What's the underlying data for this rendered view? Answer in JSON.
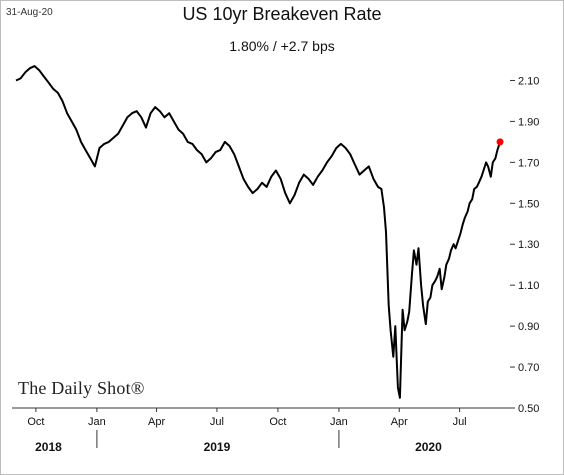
{
  "header": {
    "date": "31-Aug-20",
    "title": "US 10yr Breakeven Rate",
    "subtitle": "1.80%  /  +2.7 bps"
  },
  "brand": "The Daily Shot®",
  "chart_data": {
    "type": "line",
    "title": "US 10yr Breakeven Rate",
    "xlabel": "",
    "ylabel": "",
    "ylim": [
      0.5,
      2.2
    ],
    "yticks": [
      0.5,
      0.7,
      0.9,
      1.1,
      1.3,
      1.5,
      1.7,
      1.9,
      2.1
    ],
    "ytick_labels": [
      "0.50",
      "0.70",
      "0.90",
      "1.10",
      "1.30",
      "1.50",
      "1.70",
      "1.90",
      "2.10"
    ],
    "xlim": [
      "2018-09-01",
      "2020-09-15"
    ],
    "month_ticks": [
      {
        "date": "2018-10-01",
        "label": "Oct"
      },
      {
        "date": "2019-01-01",
        "label": "Jan"
      },
      {
        "date": "2019-04-01",
        "label": "Apr"
      },
      {
        "date": "2019-07-01",
        "label": "Jul"
      },
      {
        "date": "2019-10-01",
        "label": "Oct"
      },
      {
        "date": "2020-01-01",
        "label": "Jan"
      },
      {
        "date": "2020-04-01",
        "label": "Apr"
      },
      {
        "date": "2020-07-01",
        "label": "Jul"
      }
    ],
    "year_labels": [
      {
        "label": "2018",
        "date": "2018-10-20"
      },
      {
        "label": "2019",
        "date": "2019-07-01"
      },
      {
        "label": "2020",
        "date": "2020-05-15"
      }
    ],
    "year_dividers": [
      "2019-01-01",
      "2020-01-01"
    ],
    "grid": false,
    "series": [
      {
        "color": "#000000",
        "x": [
          "2018-09-01",
          "2018-09-08",
          "2018-09-15",
          "2018-09-22",
          "2018-09-29",
          "2018-10-06",
          "2018-10-13",
          "2018-10-20",
          "2018-10-27",
          "2018-11-03",
          "2018-11-10",
          "2018-11-17",
          "2018-11-24",
          "2018-12-01",
          "2018-12-08",
          "2018-12-15",
          "2018-12-22",
          "2018-12-29",
          "2019-01-05",
          "2019-01-12",
          "2019-01-19",
          "2019-01-26",
          "2019-02-02",
          "2019-02-09",
          "2019-02-16",
          "2019-02-23",
          "2019-03-02",
          "2019-03-09",
          "2019-03-16",
          "2019-03-23",
          "2019-03-30",
          "2019-04-06",
          "2019-04-13",
          "2019-04-20",
          "2019-04-27",
          "2019-05-04",
          "2019-05-11",
          "2019-05-18",
          "2019-05-25",
          "2019-06-01",
          "2019-06-08",
          "2019-06-15",
          "2019-06-22",
          "2019-06-29",
          "2019-07-06",
          "2019-07-13",
          "2019-07-20",
          "2019-07-27",
          "2019-08-03",
          "2019-08-10",
          "2019-08-17",
          "2019-08-24",
          "2019-08-31",
          "2019-09-07",
          "2019-09-14",
          "2019-09-21",
          "2019-09-28",
          "2019-10-05",
          "2019-10-12",
          "2019-10-19",
          "2019-10-26",
          "2019-11-02",
          "2019-11-09",
          "2019-11-16",
          "2019-11-23",
          "2019-11-30",
          "2019-12-07",
          "2019-12-14",
          "2019-12-21",
          "2019-12-28",
          "2020-01-04",
          "2020-01-11",
          "2020-01-18",
          "2020-01-25",
          "2020-02-01",
          "2020-02-08",
          "2020-02-15",
          "2020-02-22",
          "2020-02-29",
          "2020-03-05",
          "2020-03-09",
          "2020-03-12",
          "2020-03-16",
          "2020-03-19",
          "2020-03-23",
          "2020-03-26",
          "2020-03-30",
          "2020-04-02",
          "2020-04-06",
          "2020-04-09",
          "2020-04-13",
          "2020-04-16",
          "2020-04-20",
          "2020-04-23",
          "2020-04-27",
          "2020-04-30",
          "2020-05-04",
          "2020-05-07",
          "2020-05-11",
          "2020-05-14",
          "2020-05-18",
          "2020-05-21",
          "2020-05-25",
          "2020-05-28",
          "2020-06-01",
          "2020-06-04",
          "2020-06-08",
          "2020-06-11",
          "2020-06-15",
          "2020-06-18",
          "2020-06-22",
          "2020-06-25",
          "2020-06-29",
          "2020-07-02",
          "2020-07-06",
          "2020-07-09",
          "2020-07-13",
          "2020-07-16",
          "2020-07-20",
          "2020-07-23",
          "2020-07-27",
          "2020-07-30",
          "2020-08-03",
          "2020-08-06",
          "2020-08-10",
          "2020-08-13",
          "2020-08-17",
          "2020-08-20",
          "2020-08-24",
          "2020-08-27",
          "2020-08-31"
        ],
        "values": [
          2.1,
          2.11,
          2.14,
          2.16,
          2.17,
          2.15,
          2.12,
          2.09,
          2.06,
          2.04,
          2.0,
          1.94,
          1.9,
          1.86,
          1.8,
          1.76,
          1.72,
          1.68,
          1.77,
          1.79,
          1.8,
          1.82,
          1.84,
          1.88,
          1.92,
          1.94,
          1.95,
          1.92,
          1.87,
          1.94,
          1.97,
          1.95,
          1.92,
          1.94,
          1.9,
          1.86,
          1.84,
          1.8,
          1.79,
          1.76,
          1.74,
          1.7,
          1.72,
          1.75,
          1.76,
          1.8,
          1.78,
          1.74,
          1.68,
          1.62,
          1.58,
          1.55,
          1.57,
          1.6,
          1.58,
          1.63,
          1.66,
          1.62,
          1.55,
          1.5,
          1.54,
          1.6,
          1.64,
          1.62,
          1.59,
          1.63,
          1.66,
          1.7,
          1.73,
          1.77,
          1.79,
          1.77,
          1.74,
          1.69,
          1.64,
          1.66,
          1.68,
          1.62,
          1.58,
          1.57,
          1.48,
          1.36,
          1.0,
          0.88,
          0.75,
          0.9,
          0.6,
          0.55,
          0.98,
          0.88,
          0.92,
          0.97,
          1.15,
          1.27,
          1.2,
          1.28,
          1.1,
          1.0,
          0.91,
          1.02,
          1.04,
          1.1,
          1.12,
          1.14,
          1.18,
          1.08,
          1.14,
          1.2,
          1.23,
          1.27,
          1.3,
          1.28,
          1.32,
          1.35,
          1.4,
          1.43,
          1.46,
          1.5,
          1.52,
          1.57,
          1.58,
          1.6,
          1.63,
          1.66,
          1.7,
          1.68,
          1.63,
          1.7,
          1.72,
          1.76,
          1.8
        ]
      }
    ],
    "last_point": {
      "date": "2020-08-31",
      "value": 1.8,
      "color": "#ff0000"
    }
  }
}
